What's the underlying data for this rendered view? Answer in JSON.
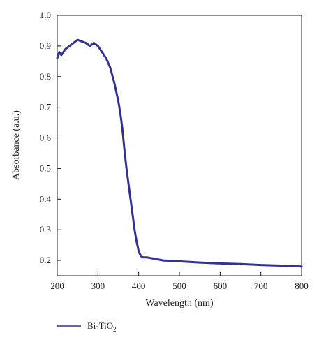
{
  "chart_data": {
    "type": "line",
    "title": "",
    "xlabel": "Wavelength (nm)",
    "ylabel": "Absorbance (a.u.)",
    "xlim": [
      200,
      800
    ],
    "ylim": [
      0.15,
      1.0
    ],
    "xticks": [
      200,
      300,
      400,
      500,
      600,
      700,
      800
    ],
    "yticks": [
      0.2,
      0.3,
      0.4,
      0.5,
      0.6,
      0.7,
      0.8,
      0.9,
      1.0
    ],
    "grid": false,
    "legend_position": "bottom-left",
    "series": [
      {
        "name": "Bi-TiO2",
        "color": "#33338f",
        "x": [
          200,
          205,
          210,
          220,
          230,
          240,
          250,
          260,
          270,
          280,
          290,
          300,
          310,
          320,
          330,
          340,
          350,
          355,
          360,
          365,
          370,
          375,
          380,
          385,
          390,
          395,
          400,
          405,
          410,
          420,
          440,
          460,
          500,
          550,
          600,
          650,
          700,
          750,
          800
        ],
        "y": [
          0.86,
          0.88,
          0.87,
          0.89,
          0.9,
          0.91,
          0.92,
          0.915,
          0.91,
          0.9,
          0.91,
          0.9,
          0.88,
          0.86,
          0.83,
          0.78,
          0.72,
          0.68,
          0.63,
          0.56,
          0.5,
          0.45,
          0.4,
          0.35,
          0.3,
          0.26,
          0.23,
          0.215,
          0.21,
          0.21,
          0.205,
          0.2,
          0.197,
          0.193,
          0.19,
          0.188,
          0.185,
          0.183,
          0.18
        ]
      }
    ]
  },
  "legend": {
    "label_main": "Bi-TiO",
    "label_sub": "2"
  }
}
